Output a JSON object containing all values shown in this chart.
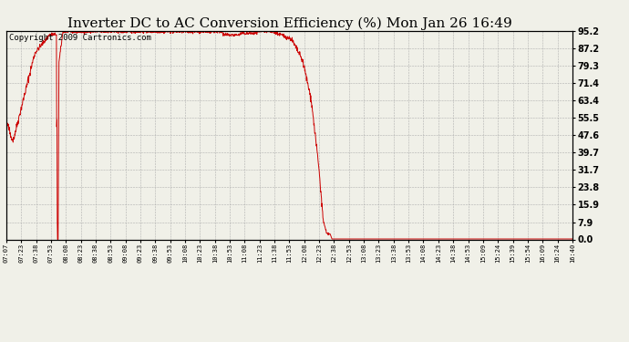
{
  "title": "Inverter DC to AC Conversion Efficiency (%) Mon Jan 26 16:49",
  "copyright": "Copyright 2009 Cartronics.com",
  "ylabel_right": [
    "0.0",
    "7.9",
    "15.9",
    "23.8",
    "31.7",
    "39.7",
    "47.6",
    "55.5",
    "63.4",
    "71.4",
    "79.3",
    "87.2",
    "95.2"
  ],
  "ytick_values": [
    0.0,
    7.9,
    15.9,
    23.8,
    31.7,
    39.7,
    47.6,
    55.5,
    63.4,
    71.4,
    79.3,
    87.2,
    95.2
  ],
  "ylim": [
    0.0,
    95.2
  ],
  "x_labels": [
    "07:07",
    "07:23",
    "07:38",
    "07:53",
    "08:08",
    "08:23",
    "08:38",
    "08:53",
    "09:08",
    "09:23",
    "09:38",
    "09:53",
    "10:08",
    "10:23",
    "10:38",
    "10:53",
    "11:08",
    "11:23",
    "11:38",
    "11:53",
    "12:08",
    "12:23",
    "12:38",
    "12:53",
    "13:08",
    "13:23",
    "13:38",
    "13:53",
    "14:08",
    "14:23",
    "14:38",
    "14:53",
    "15:09",
    "15:24",
    "15:39",
    "15:54",
    "16:09",
    "16:24",
    "16:40"
  ],
  "line_color": "#cc0000",
  "bg_color": "#f0f0e8",
  "grid_color": "#aaaaaa",
  "title_fontsize": 11,
  "copyright_fontsize": 6.5
}
